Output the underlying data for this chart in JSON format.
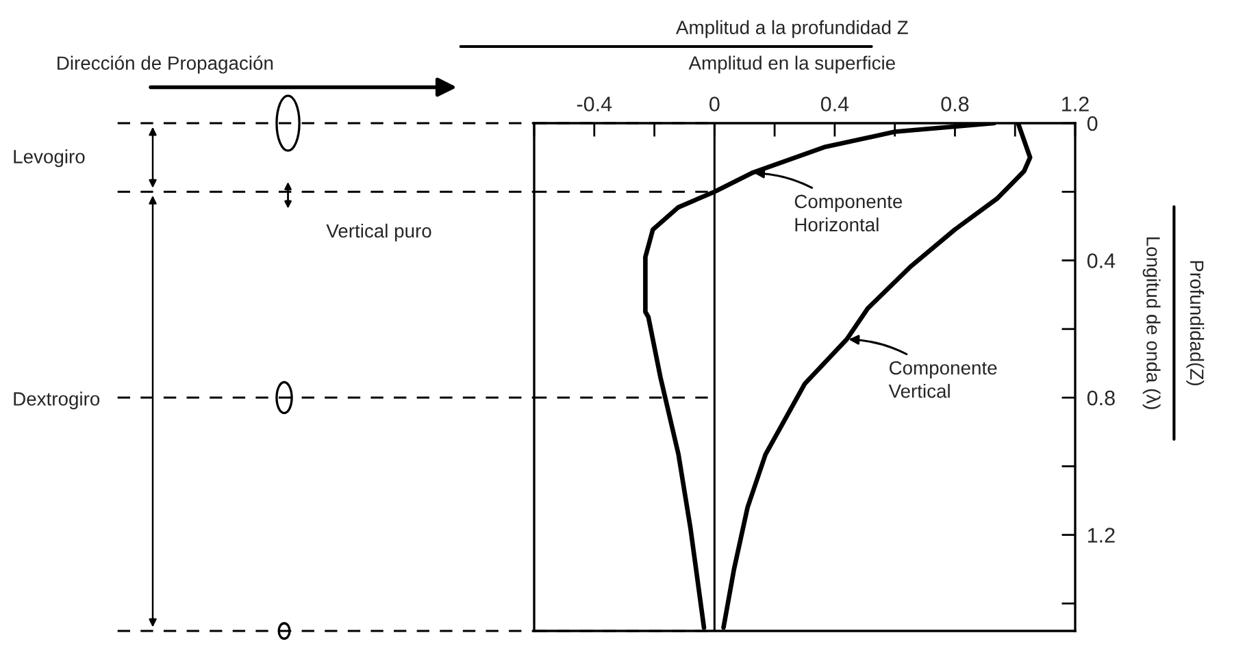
{
  "chart_data": {
    "type": "line",
    "xlabel": "Amplitud a la profundidad Z\nAmplitud en la superficie",
    "ylabel": "Profundidad(Z)\nLongitud de onda (λ)",
    "series": [
      {
        "color": "#000000",
        "x": [
          0.93,
          0.6,
          0.365,
          0.125,
          0.0,
          -0.12,
          -0.205,
          -0.23,
          -0.23,
          -0.22,
          -0.18,
          -0.12,
          -0.08,
          -0.035
        ],
        "values": [
          0.0,
          0.025,
          0.07,
          0.145,
          0.2,
          0.245,
          0.31,
          0.39,
          0.55,
          0.565,
          0.74,
          0.965,
          1.18,
          1.47
        ]
      },
      {
        "color": "#000000",
        "x": [
          1.01,
          1.05,
          1.03,
          0.94,
          0.8,
          0.65,
          0.51,
          0.44,
          0.3,
          0.17,
          0.11,
          0.065,
          0.03
        ],
        "values": [
          0.0,
          0.1,
          0.14,
          0.22,
          0.31,
          0.42,
          0.54,
          0.63,
          0.76,
          0.965,
          1.12,
          1.3,
          1.47
        ]
      }
    ],
    "xlim": [
      -0.6,
      1.2
    ],
    "xticks": [
      {
        "value": -0.6,
        "label": null
      },
      -0.4,
      {
        "value": -0.2,
        "label": null
      },
      0,
      {
        "value": 0.2,
        "label": null
      },
      0.4,
      {
        "value": 0.6,
        "label": null
      },
      0.8,
      {
        "value": 1.0,
        "label": null
      },
      1.2
    ],
    "ylim": [
      1.48,
      0
    ],
    "yticks": [
      0,
      {
        "value": 0.2,
        "label": null
      },
      0.4,
      {
        "value": 0.6,
        "label": null
      },
      0.8,
      {
        "value": 1.0,
        "label": null
      },
      1.2,
      {
        "value": 1.4,
        "label": null
      }
    ],
    "ref_lines": [
      {
        "axis": "x",
        "value": 0,
        "line_style": "solid",
        "color": "#000000"
      },
      {
        "axis": "y",
        "value": 0,
        "line_style": "dashed",
        "color": "#000000"
      },
      {
        "axis": "y",
        "value": 0.2,
        "line_style": "dashed",
        "color": "#000000"
      },
      {
        "axis": "y",
        "value": 0.8,
        "line_style": "dashed",
        "color": "#000000"
      },
      {
        "axis": "y",
        "value": 1.48,
        "line_style": "dashed",
        "color": "#000000"
      }
    ],
    "annotations": [
      {
        "text": "Componente\nHorizontal",
        "x": 0.125,
        "y": 0.145
      },
      {
        "text": "Componente\nVertical",
        "x": 0.44,
        "y": 0.63
      },
      "Dirección de Propagación",
      "Vertical puro",
      "Levogiro",
      "Dextrogiro"
    ],
    "grid": false,
    "legend": false
  }
}
